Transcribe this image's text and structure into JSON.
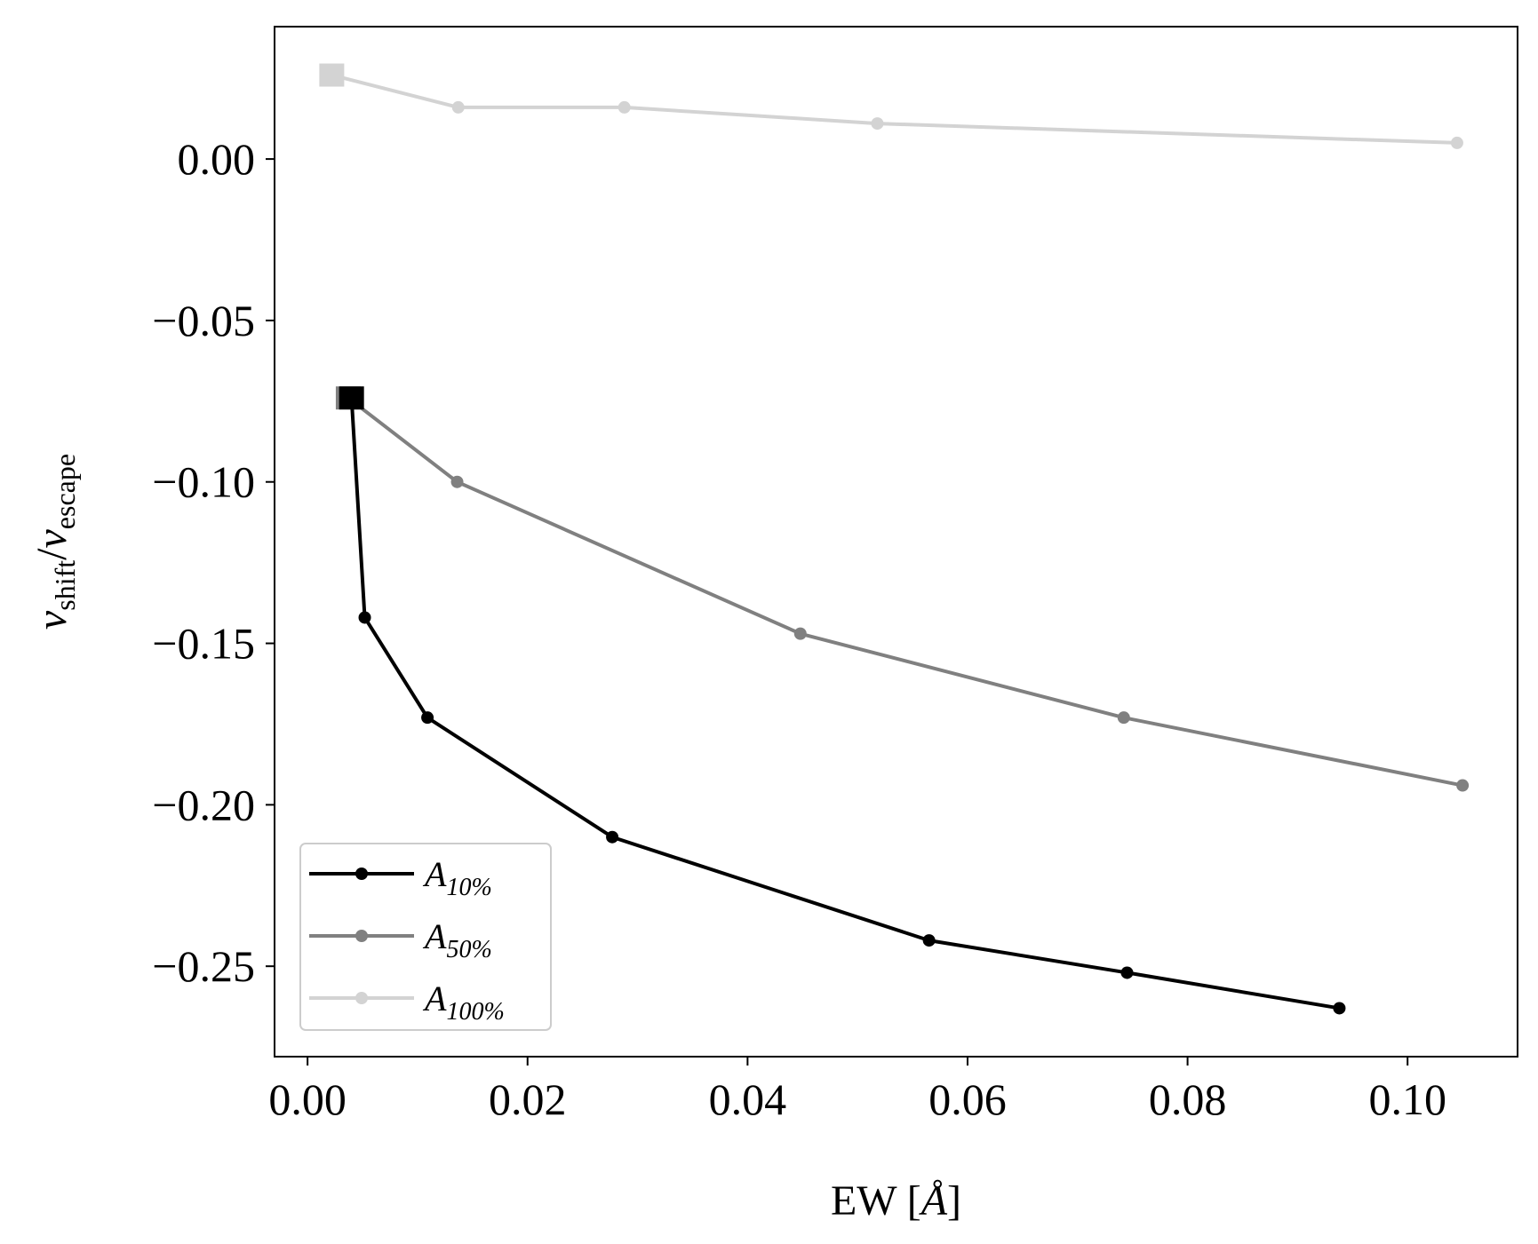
{
  "chart_data": {
    "type": "line",
    "title": "",
    "xlabel": {
      "main": "EW [",
      "symbol": "Å",
      "close": "]"
    },
    "ylabel": {
      "v1": "v",
      "sub1": "shift",
      "slash": "/",
      "v2": "v",
      "sub2": "escape"
    },
    "xlim": [
      -0.003,
      0.11
    ],
    "ylim": [
      -0.278,
      0.041
    ],
    "xticks": [
      {
        "value": 0.0,
        "label": "0.00"
      },
      {
        "value": 0.02,
        "label": "0.02"
      },
      {
        "value": 0.04,
        "label": "0.04"
      },
      {
        "value": 0.06,
        "label": "0.06"
      },
      {
        "value": 0.08,
        "label": "0.08"
      },
      {
        "value": 0.1,
        "label": "0.10"
      }
    ],
    "yticks": [
      {
        "value": 0.0,
        "label": "0.00"
      },
      {
        "value": -0.05,
        "label": "−0.05"
      },
      {
        "value": -0.1,
        "label": "−0.10"
      },
      {
        "value": -0.15,
        "label": "−0.15"
      },
      {
        "value": -0.2,
        "label": "−0.20"
      },
      {
        "value": -0.25,
        "label": "−0.25"
      }
    ],
    "grid": false,
    "legend": {
      "placement": "lower-left"
    },
    "series": [
      {
        "name": {
          "base": "A",
          "sub": "10%"
        },
        "color": "#000000",
        "x": [
          0.004,
          0.0052,
          0.0109,
          0.0277,
          0.0565,
          0.0745,
          0.0938
        ],
        "y": [
          -0.074,
          -0.142,
          -0.173,
          -0.21,
          -0.242,
          -0.252,
          -0.263
        ],
        "first_marker": "square"
      },
      {
        "name": {
          "base": "A",
          "sub": "50%"
        },
        "color": "#808080",
        "x": [
          0.0037,
          0.0136,
          0.0448,
          0.0742,
          0.105
        ],
        "y": [
          -0.074,
          -0.1,
          -0.147,
          -0.173,
          -0.194
        ],
        "first_marker": "square"
      },
      {
        "name": {
          "base": "A",
          "sub": "100%"
        },
        "color": "#d3d3d3",
        "x": [
          0.0022,
          0.0137,
          0.0288,
          0.0518,
          0.1045
        ],
        "y": [
          0.026,
          0.016,
          0.016,
          0.011,
          0.005
        ],
        "first_marker": "square"
      }
    ]
  }
}
